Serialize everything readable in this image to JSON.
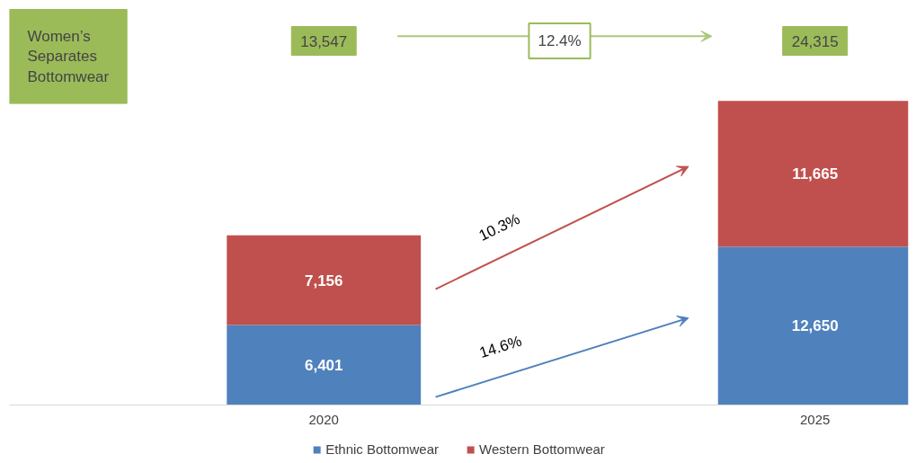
{
  "chart_data": {
    "type": "bar",
    "stacked": true,
    "title": "Women’s Separates Bottomwear",
    "categories": [
      "2020",
      "2025"
    ],
    "series": [
      {
        "name": "Ethnic Bottomwear",
        "color": "#4f81bd",
        "values": [
          6401,
          12650
        ],
        "value_labels": [
          "6,401",
          "12,650"
        ]
      },
      {
        "name": "Western Bottomwear",
        "color": "#c0504d",
        "values": [
          7156,
          11665
        ],
        "value_labels": [
          "7,156",
          "11,665"
        ]
      }
    ],
    "annotations": [
      "13,547",
      "24,315",
      "12.4%",
      "10.3%",
      "14.6%"
    ],
    "legend": "bottom"
  }
}
